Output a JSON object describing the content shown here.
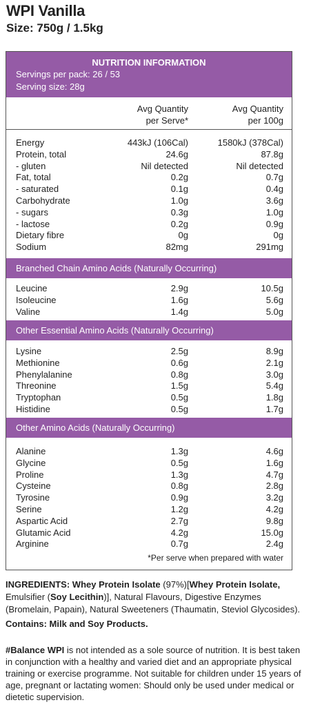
{
  "product": {
    "title": "WPI Vanilla",
    "size": "Size: 750g / 1.5kg"
  },
  "panel": {
    "heading": "NUTRITION INFORMATION",
    "servings_per_pack": "Servings per pack: 26 / 53",
    "serving_size": "Serving size: 28g",
    "col1_line1": "Avg Quantity",
    "col1_line2": "per Serve*",
    "col2_line1": "Avg Quantity",
    "col2_line2": "per 100g",
    "nutrients": [
      {
        "name": "Energy",
        "serve": "443kJ (106Cal)",
        "per100": "1580kJ (378Cal)"
      },
      {
        "name": "Protein, total",
        "serve": "24.6g",
        "per100": "87.8g"
      },
      {
        "name": "- gluten",
        "serve": "Nil detected",
        "per100": "Nil detected"
      },
      {
        "name": "Fat, total",
        "serve": "0.2g",
        "per100": "0.7g"
      },
      {
        "name": "- saturated",
        "serve": "0.1g",
        "per100": "0.4g"
      },
      {
        "name": "Carbohydrate",
        "serve": "1.0g",
        "per100": "3.6g"
      },
      {
        "name": "- sugars",
        "serve": "0.3g",
        "per100": "1.0g"
      },
      {
        "name": "- lactose",
        "serve": "0.2g",
        "per100": "0.9g"
      },
      {
        "name": "Dietary fibre",
        "serve": "0g",
        "per100": "0g"
      },
      {
        "name": "Sodium",
        "serve": "82mg",
        "per100": "291mg"
      }
    ],
    "bcaa_heading": "Branched Chain Amino Acids (Naturally Occurring)",
    "bcaa": [
      {
        "name": "Leucine",
        "serve": "2.9g",
        "per100": "10.5g"
      },
      {
        "name": "Isoleucine",
        "serve": "1.6g",
        "per100": "5.6g"
      },
      {
        "name": "Valine",
        "serve": "1.4g",
        "per100": "5.0g"
      }
    ],
    "eaa_heading": "Other Essential Amino Acids (Naturally Occurring)",
    "eaa": [
      {
        "name": "Lysine",
        "serve": "2.5g",
        "per100": "8.9g"
      },
      {
        "name": "Methionine",
        "serve": "0.6g",
        "per100": "2.1g"
      },
      {
        "name": "Phenylalanine",
        "serve": "0.8g",
        "per100": "3.0g"
      },
      {
        "name": "Threonine",
        "serve": "1.5g",
        "per100": "5.4g"
      },
      {
        "name": "Tryptophan",
        "serve": "0.5g",
        "per100": "1.8g"
      },
      {
        "name": "Histidine",
        "serve": "0.5g",
        "per100": "1.7g"
      }
    ],
    "oaa_heading": "Other Amino Acids (Naturally Occurring)",
    "oaa": [
      {
        "name": "Alanine",
        "serve": "1.3g",
        "per100": "4.6g"
      },
      {
        "name": "Glycine",
        "serve": "0.5g",
        "per100": "1.6g"
      },
      {
        "name": "Proline",
        "serve": "1.3g",
        "per100": "4.7g"
      },
      {
        "name": "Cysteine",
        "serve": "0.8g",
        "per100": "2.8g"
      },
      {
        "name": "Tyrosine",
        "serve": "0.9g",
        "per100": "3.2g"
      },
      {
        "name": "Serine",
        "serve": "1.2g",
        "per100": "4.2g"
      },
      {
        "name": "Aspartic Acid",
        "serve": "2.7g",
        "per100": "9.8g"
      },
      {
        "name": "Glutamic Acid",
        "serve": "4.2g",
        "per100": "15.0g"
      },
      {
        "name": "Arginine",
        "serve": "0.7g",
        "per100": "2.4g"
      }
    ],
    "footnote": "*Per serve when prepared with water"
  },
  "ingredients": {
    "label": "INGREDIENTS:",
    "wpi": "Whey Protein Isolate",
    "pct": " (97%)[",
    "wpi2": "Whey Protein Isolate,",
    "emul": " Emulsifier (",
    "soy": "Soy Lecithin",
    "rest": ")], Natural Flavours, Digestive Enzymes (Bromelain, Papain), Natural Sweeteners (Thaumatin, Steviol Glycosides)."
  },
  "contains": "Contains: Milk and Soy Products.",
  "warning": {
    "brand": "#Balance WPI",
    "text": " is not intended as a sole source of nutrition. It is best taken in conjunction with a healthy and varied diet and an appropriate physical training or exercise programme. Not suitable for children under 15 years of age, pregnant or lactating women: Should only be used under medical or dietetic supervision."
  },
  "colors": {
    "band": "#955ba6",
    "rule": "#555555"
  }
}
